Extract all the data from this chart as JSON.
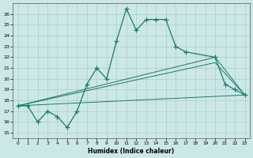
{
  "bg_color": "#cce8e6",
  "grid_color": "#aaccca",
  "line_color": "#1a7a6e",
  "xlabel": "Humidex (Indice chaleur)",
  "xlim": [
    -0.5,
    23.5
  ],
  "ylim": [
    14.5,
    27.0
  ],
  "yticks": [
    15,
    16,
    17,
    18,
    19,
    20,
    21,
    22,
    23,
    24,
    25,
    26
  ],
  "xticks": [
    0,
    1,
    2,
    3,
    4,
    5,
    6,
    7,
    8,
    9,
    10,
    11,
    12,
    13,
    14,
    15,
    16,
    17,
    18,
    19,
    20,
    21,
    22,
    23
  ],
  "main_x": [
    0,
    1,
    2,
    3,
    4,
    5,
    6,
    7,
    8,
    9,
    10,
    11,
    12,
    13,
    14,
    15,
    16,
    17,
    20,
    21,
    22,
    23
  ],
  "main_y": [
    17.5,
    17.5,
    16.0,
    17.0,
    16.5,
    15.5,
    17.0,
    19.5,
    21.0,
    20.0,
    23.5,
    26.5,
    24.5,
    25.5,
    25.5,
    25.5,
    23.0,
    22.5,
    22.0,
    19.5,
    19.0,
    18.5
  ],
  "trend1_x": [
    0,
    23
  ],
  "trend1_y": [
    17.5,
    18.5
  ],
  "trend2_x": [
    0,
    20,
    23
  ],
  "trend2_y": [
    17.5,
    22.0,
    18.5
  ],
  "trend3_x": [
    0,
    20,
    23
  ],
  "trend3_y": [
    17.5,
    21.5,
    18.5
  ]
}
